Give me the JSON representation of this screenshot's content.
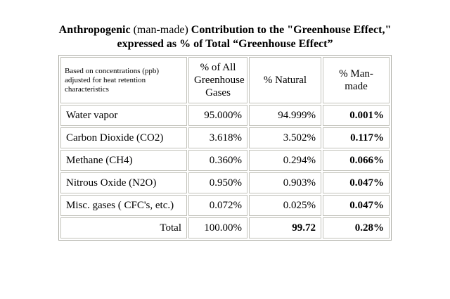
{
  "title": {
    "part1_bold": "Anthropogenic ",
    "part2_regular": "(man-made)",
    "part3_bold": " Contribution to the \"Greenhouse Effect,\" expressed as % of Total “Greenhouse Effect”"
  },
  "table": {
    "header": {
      "description": "Based on concentrations (ppb) adjusted for heat retention characteristics",
      "pct_all": "% of All Greenhouse Gases",
      "pct_natural": "% Natural",
      "pct_manmade": "% Man-made"
    },
    "rows": [
      {
        "label": "Water vapor",
        "all": "95.000%",
        "natural": "94.999%",
        "manmade": "0.001%"
      },
      {
        "label": "Carbon Dioxide (CO2)",
        "all": "3.618%",
        "natural": "3.502%",
        "manmade": "0.117%"
      },
      {
        "label": "Methane (CH4)",
        "all": "0.360%",
        "natural": "0.294%",
        "manmade": "0.066%"
      },
      {
        "label": "Nitrous Oxide (N2O)",
        "all": "0.950%",
        "natural": "0.903%",
        "manmade": "0.047%"
      },
      {
        "label": "Misc. gases ( CFC's, etc.)",
        "all": "0.072%",
        "natural": "0.025%",
        "manmade": "0.047%"
      }
    ],
    "total": {
      "label": "Total",
      "all": "100.00%",
      "natural": "99.72",
      "manmade": "0.28%"
    }
  },
  "colors": {
    "background": "#ffffff",
    "text": "#000000",
    "table_border": "#c2c2ba"
  },
  "chart_data": {
    "type": "table",
    "title": "Anthropogenic (man-made) Contribution to the \"Greenhouse Effect,\" expressed as % of Total “Greenhouse Effect”",
    "columns": [
      "Based on concentrations (ppb) adjusted for heat retention characteristics",
      "% of All Greenhouse Gases",
      "% Natural",
      "% Man-made"
    ],
    "rows": [
      [
        "Water vapor",
        95.0,
        94.999,
        0.001
      ],
      [
        "Carbon Dioxide (CO2)",
        3.618,
        3.502,
        0.117
      ],
      [
        "Methane (CH4)",
        0.36,
        0.294,
        0.066
      ],
      [
        "Nitrous Oxide (N2O)",
        0.95,
        0.903,
        0.047
      ],
      [
        "Misc. gases ( CFC's, etc.)",
        0.072,
        0.025,
        0.047
      ],
      [
        "Total",
        100.0,
        99.72,
        0.28
      ]
    ],
    "units": "percent of total greenhouse effect"
  }
}
